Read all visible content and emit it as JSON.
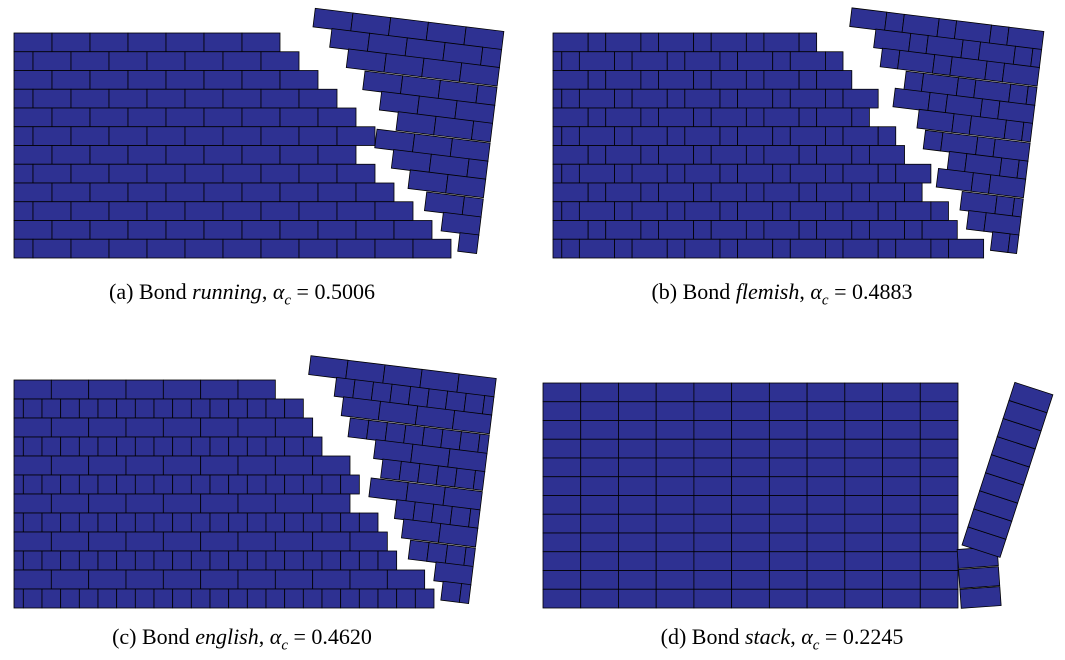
{
  "panels": [
    {
      "prefix": "(a) Bond",
      "bond": "running",
      "separator": ",",
      "symbol": "α",
      "subscript": "c",
      "relation": "=",
      "value": "0.5006"
    },
    {
      "prefix": "(b) Bond",
      "bond": "flemish",
      "separator": ",",
      "symbol": "α",
      "subscript": "c",
      "relation": "=",
      "value": "0.4883"
    },
    {
      "prefix": "(c) Bond",
      "bond": "english",
      "separator": ",",
      "symbol": "α",
      "subscript": "c",
      "relation": "=",
      "value": "0.4620"
    },
    {
      "prefix": "(d) Bond",
      "bond": "stack",
      "separator": ",",
      "symbol": "α",
      "subscript": "c",
      "relation": "=",
      "value": "0.2245"
    }
  ]
}
